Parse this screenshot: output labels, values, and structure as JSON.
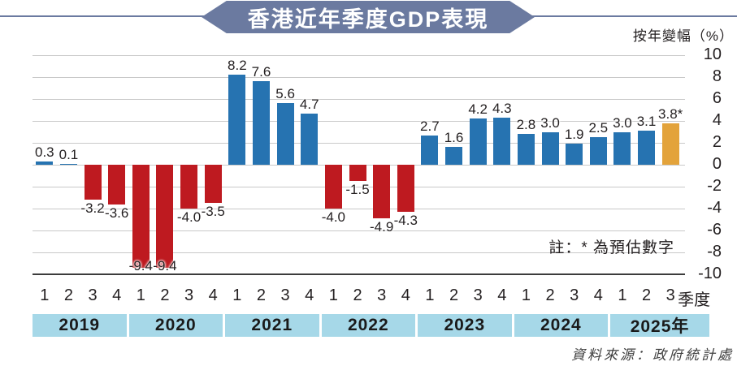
{
  "title": "香港近年季度GDP表現",
  "axis": {
    "unit_label": "按年變幅（%）",
    "x_suffix": "季度"
  },
  "note": "註：* 為預估數字",
  "source": "資料來源：政府統計處",
  "colors": {
    "positive": "#2673b1",
    "negative": "#be1a20",
    "estimate": "#e3a33b",
    "year_band": "#a6d8e8",
    "banner": "#6b7aa0",
    "grid": "#c9c9c9",
    "axis_line": "#3c3c3c",
    "text": "#231f20"
  },
  "chart_data": {
    "type": "bar",
    "title": "香港近年季度GDP表現",
    "ylabel": "按年變幅（%）",
    "ylim": [
      -10,
      10
    ],
    "y_ticks": [
      10,
      8,
      6,
      4,
      2,
      0,
      -2,
      -4,
      -6,
      -8,
      -10
    ],
    "grid": true,
    "legend": false,
    "note": "註：* 為預估數字",
    "source": "資料來源：政府統計處",
    "years": [
      "2019",
      "2020",
      "2021",
      "2022",
      "2023",
      "2024",
      "2025年"
    ],
    "bars": [
      {
        "year": "2019",
        "quarter": "1",
        "value": 0.3,
        "label": "0.3",
        "role": "positive"
      },
      {
        "year": "2019",
        "quarter": "2",
        "value": 0.1,
        "label": "0.1",
        "role": "positive"
      },
      {
        "year": "2019",
        "quarter": "3",
        "value": -3.2,
        "label": "-3.2",
        "role": "negative"
      },
      {
        "year": "2019",
        "quarter": "4",
        "value": -3.6,
        "label": "-3.6",
        "role": "negative"
      },
      {
        "year": "2020",
        "quarter": "1",
        "value": -9.4,
        "label": "-9.4",
        "role": "negative"
      },
      {
        "year": "2020",
        "quarter": "2",
        "value": -9.4,
        "label": "-9.4",
        "role": "negative"
      },
      {
        "year": "2020",
        "quarter": "3",
        "value": -4.0,
        "label": "-4.0",
        "role": "negative"
      },
      {
        "year": "2020",
        "quarter": "4",
        "value": -3.5,
        "label": "-3.5",
        "role": "negative"
      },
      {
        "year": "2021",
        "quarter": "1",
        "value": 8.2,
        "label": "8.2",
        "role": "positive"
      },
      {
        "year": "2021",
        "quarter": "2",
        "value": 7.6,
        "label": "7.6",
        "role": "positive"
      },
      {
        "year": "2021",
        "quarter": "3",
        "value": 5.6,
        "label": "5.6",
        "role": "positive"
      },
      {
        "year": "2021",
        "quarter": "4",
        "value": 4.7,
        "label": "4.7",
        "role": "positive"
      },
      {
        "year": "2022",
        "quarter": "1",
        "value": -4.0,
        "label": "-4.0",
        "role": "negative"
      },
      {
        "year": "2022",
        "quarter": "2",
        "value": -1.5,
        "label": "-1.5",
        "role": "negative"
      },
      {
        "year": "2022",
        "quarter": "3",
        "value": -4.9,
        "label": "-4.9",
        "role": "negative"
      },
      {
        "year": "2022",
        "quarter": "4",
        "value": -4.3,
        "label": "-4.3",
        "role": "negative"
      },
      {
        "year": "2023",
        "quarter": "1",
        "value": 2.7,
        "label": "2.7",
        "role": "positive"
      },
      {
        "year": "2023",
        "quarter": "2",
        "value": 1.6,
        "label": "1.6",
        "role": "positive"
      },
      {
        "year": "2023",
        "quarter": "3",
        "value": 4.2,
        "label": "4.2",
        "role": "positive"
      },
      {
        "year": "2023",
        "quarter": "4",
        "value": 4.3,
        "label": "4.3",
        "role": "positive"
      },
      {
        "year": "2024",
        "quarter": "1",
        "value": 2.8,
        "label": "2.8",
        "role": "positive"
      },
      {
        "year": "2024",
        "quarter": "2",
        "value": 3.0,
        "label": "3.0",
        "role": "positive"
      },
      {
        "year": "2024",
        "quarter": "3",
        "value": 1.9,
        "label": "1.9",
        "role": "positive"
      },
      {
        "year": "2024",
        "quarter": "4",
        "value": 2.5,
        "label": "2.5",
        "role": "positive"
      },
      {
        "year": "2025年",
        "quarter": "1",
        "value": 3.0,
        "label": "3.0",
        "role": "positive"
      },
      {
        "year": "2025年",
        "quarter": "2",
        "value": 3.1,
        "label": "3.1",
        "role": "positive"
      },
      {
        "year": "2025年",
        "quarter": "3",
        "value": 3.8,
        "label": "3.8*",
        "role": "estimate"
      }
    ]
  }
}
